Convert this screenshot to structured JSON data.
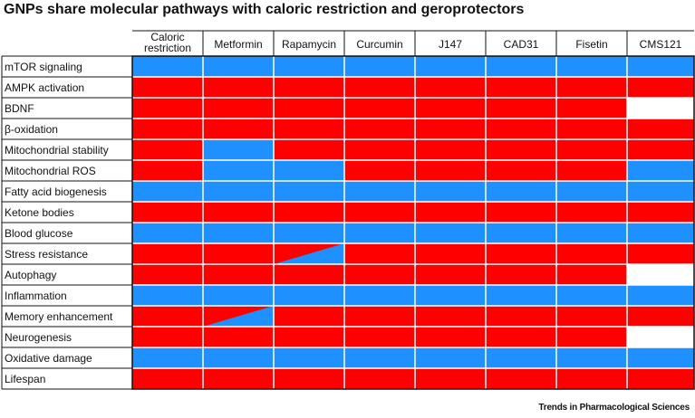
{
  "title": "GNPs share molecular pathways with caloric restriction and geroprotectors",
  "credit": "Trends in Pharmacological Sciences",
  "colors": {
    "red": "#ff0000",
    "blue": "#1e90ff",
    "white": "#ffffff"
  },
  "columns": [
    [
      "Caloric",
      "restriction"
    ],
    [
      "Metformin"
    ],
    [
      "Rapamycin"
    ],
    [
      "Curcumin"
    ],
    [
      "J147"
    ],
    [
      "CAD31"
    ],
    [
      "Fisetin"
    ],
    [
      "CMS121"
    ]
  ],
  "rows": [
    {
      "label": "mTOR signaling",
      "cells": [
        "blue",
        "blue",
        "blue",
        "blue",
        "blue",
        "blue",
        "blue",
        "blue"
      ]
    },
    {
      "label": "AMPK activation",
      "cells": [
        "red",
        "red",
        "red",
        "red",
        "red",
        "red",
        "red",
        "red"
      ]
    },
    {
      "label": "BDNF",
      "cells": [
        "red",
        "red",
        "red",
        "red",
        "red",
        "red",
        "red",
        "white"
      ]
    },
    {
      "label": "β-oxidation",
      "cells": [
        "red",
        "red",
        "red",
        "red",
        "red",
        "red",
        "red",
        "red"
      ]
    },
    {
      "label": "Mitochondrial stability",
      "cells": [
        "red",
        "blue",
        "red",
        "red",
        "red",
        "red",
        "red",
        "red"
      ]
    },
    {
      "label": "Mitochondrial ROS",
      "cells": [
        "red",
        "blue",
        "blue",
        "red",
        "red",
        "red",
        "red",
        "blue"
      ]
    },
    {
      "label": "Fatty acid biogenesis",
      "cells": [
        "blue",
        "blue",
        "blue",
        "blue",
        "blue",
        "blue",
        "blue",
        "blue"
      ]
    },
    {
      "label": "Ketone bodies",
      "cells": [
        "red",
        "red",
        "red",
        "red",
        "red",
        "red",
        "red",
        "red"
      ]
    },
    {
      "label": "Blood glucose",
      "cells": [
        "blue",
        "blue",
        "blue",
        "blue",
        "blue",
        "blue",
        "blue",
        "blue"
      ]
    },
    {
      "label": "Stress resistance",
      "cells": [
        "red",
        "red",
        "split",
        "red",
        "red",
        "red",
        "red",
        "red"
      ]
    },
    {
      "label": "Autophagy",
      "cells": [
        "red",
        "red",
        "red",
        "red",
        "red",
        "red",
        "red",
        "white"
      ]
    },
    {
      "label": "Inflammation",
      "cells": [
        "blue",
        "blue",
        "blue",
        "blue",
        "blue",
        "blue",
        "blue",
        "blue"
      ]
    },
    {
      "label": "Memory enhancement",
      "cells": [
        "red",
        "split",
        "red",
        "red",
        "red",
        "red",
        "red",
        "red"
      ]
    },
    {
      "label": "Neurogenesis",
      "cells": [
        "red",
        "red",
        "red",
        "red",
        "red",
        "red",
        "red",
        "white"
      ]
    },
    {
      "label": "Oxidative damage",
      "cells": [
        "blue",
        "blue",
        "blue",
        "blue",
        "blue",
        "blue",
        "blue",
        "blue"
      ]
    },
    {
      "label": "Lifespan",
      "cells": [
        "red",
        "red",
        "red",
        "red",
        "red",
        "red",
        "red",
        "red"
      ]
    }
  ]
}
